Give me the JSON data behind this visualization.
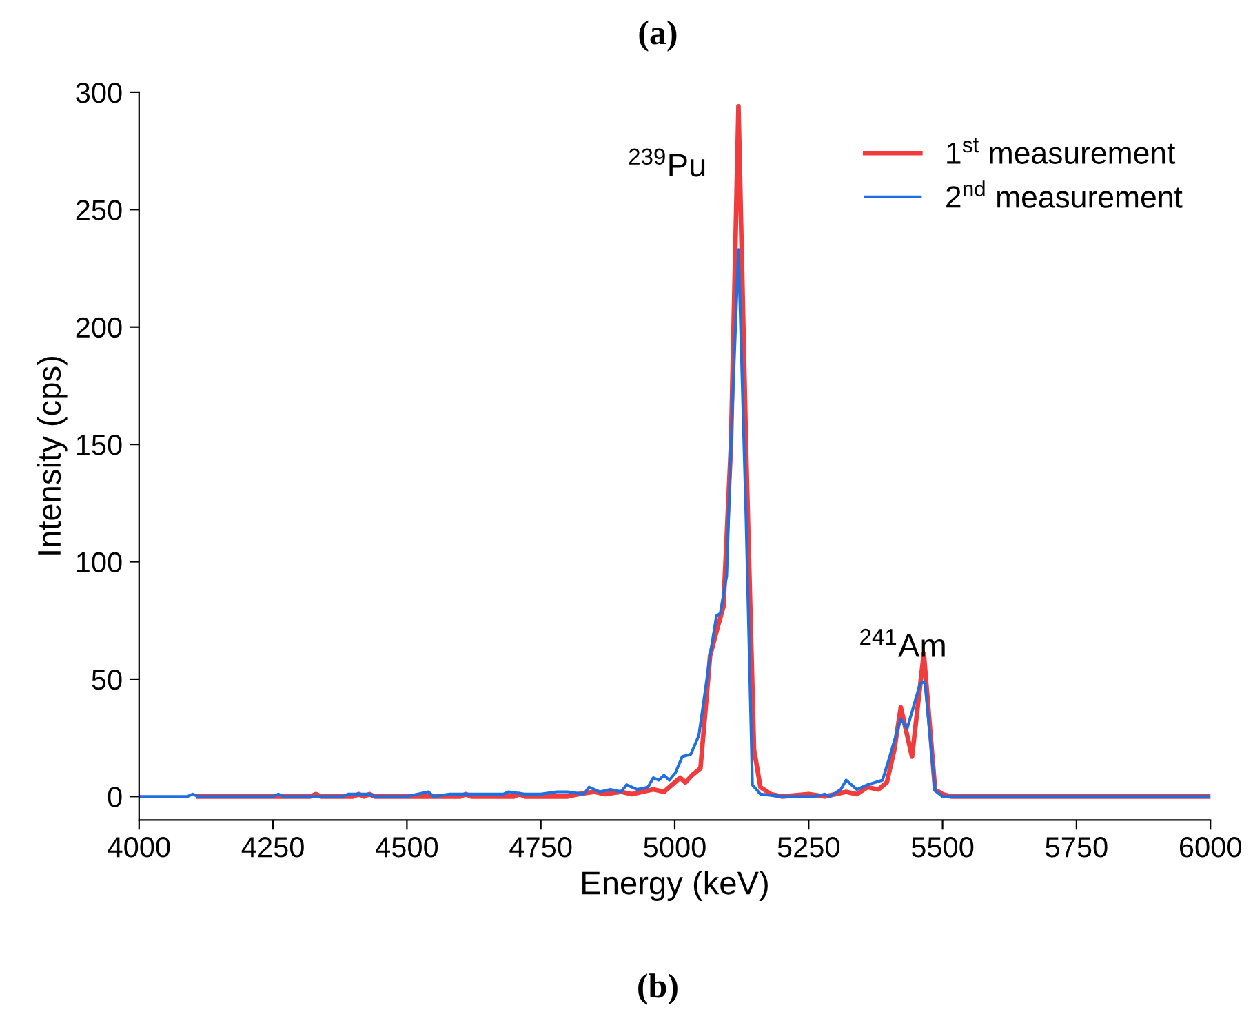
{
  "chart_data": {
    "type": "line",
    "title": "(a)",
    "subtitle": "(b)",
    "xlabel": "Energy (keV)",
    "ylabel": "Intensity (cps)",
    "xlim": [
      4000,
      6000
    ],
    "xticks": [
      4000,
      4250,
      4500,
      4750,
      5000,
      5250,
      5500,
      5750,
      6000
    ],
    "ylim": [
      -10,
      300
    ],
    "yticks": [
      0,
      50,
      100,
      150,
      200,
      250,
      300
    ],
    "grid": false,
    "legend": "top right",
    "line_style": "solid",
    "marker": "none",
    "annotations": [
      "$^{239}$Pu",
      "$^{241}$Am"
    ],
    "series": [
      {
        "name": "1$^{st}$ measurement",
        "color": "#f03c3c",
        "x": [
          4110,
          4320,
          4330,
          4340,
          4400,
          4410,
          4420,
          4430,
          4440,
          4600,
          4610,
          4620,
          4700,
          4710,
          4720,
          4800,
          4820,
          4850,
          4870,
          4900,
          4920,
          4940,
          4960,
          4980,
          5000,
          5010,
          5020,
          5032,
          5048,
          5066,
          5080,
          5091,
          5105,
          5119,
          5133,
          5148,
          5160,
          5180,
          5200,
          5250,
          5280,
          5300,
          5320,
          5340,
          5360,
          5380,
          5396,
          5410,
          5422,
          5443,
          5465,
          5486,
          5500,
          5516,
          6000
        ],
        "values": [
          0,
          0,
          1,
          0,
          0,
          1,
          0,
          1,
          0,
          0,
          1,
          0,
          0,
          1,
          0,
          0,
          1,
          2,
          1,
          2,
          1,
          2,
          3,
          2,
          6,
          8,
          6,
          9,
          12,
          60,
          72,
          81,
          150,
          294,
          150,
          20,
          4,
          1,
          0,
          1,
          0,
          1,
          2,
          1,
          4,
          3,
          6,
          20,
          38,
          17,
          61,
          3,
          1,
          0,
          0
        ]
      },
      {
        "name": "2$^{nd}$ measurement",
        "color": "#1f6fe0",
        "x": [
          4000,
          4090,
          4100,
          4110,
          4250,
          4260,
          4270,
          4380,
          4390,
          4410,
          4430,
          4440,
          4500,
          4540,
          4550,
          4580,
          4680,
          4690,
          4720,
          4750,
          4780,
          4800,
          4830,
          4840,
          4860,
          4880,
          4900,
          4910,
          4930,
          4950,
          4960,
          4970,
          4980,
          4990,
          5001,
          5014,
          5030,
          5045,
          5055,
          5066,
          5078,
          5085,
          5097,
          5105,
          5119,
          5133,
          5145,
          5160,
          5200,
          5260,
          5280,
          5290,
          5310,
          5320,
          5340,
          5360,
          5388,
          5400,
          5422,
          5434,
          5458,
          5467,
          5486,
          5500,
          5516,
          6000
        ],
        "values": [
          0,
          0,
          1,
          0,
          0,
          1,
          0,
          0,
          1,
          1,
          1,
          0,
          0,
          2,
          0,
          1,
          1,
          2,
          1,
          1,
          2,
          2,
          1,
          4,
          2,
          3,
          2,
          5,
          3,
          4,
          8,
          7,
          9,
          7,
          10,
          17,
          18,
          26,
          42,
          60,
          77,
          78,
          94,
          150,
          233,
          120,
          5,
          1,
          0,
          0,
          1,
          0,
          3,
          7,
          3,
          5,
          7,
          16,
          33,
          29,
          48,
          49,
          2.5,
          0,
          0,
          0
        ]
      }
    ]
  }
}
